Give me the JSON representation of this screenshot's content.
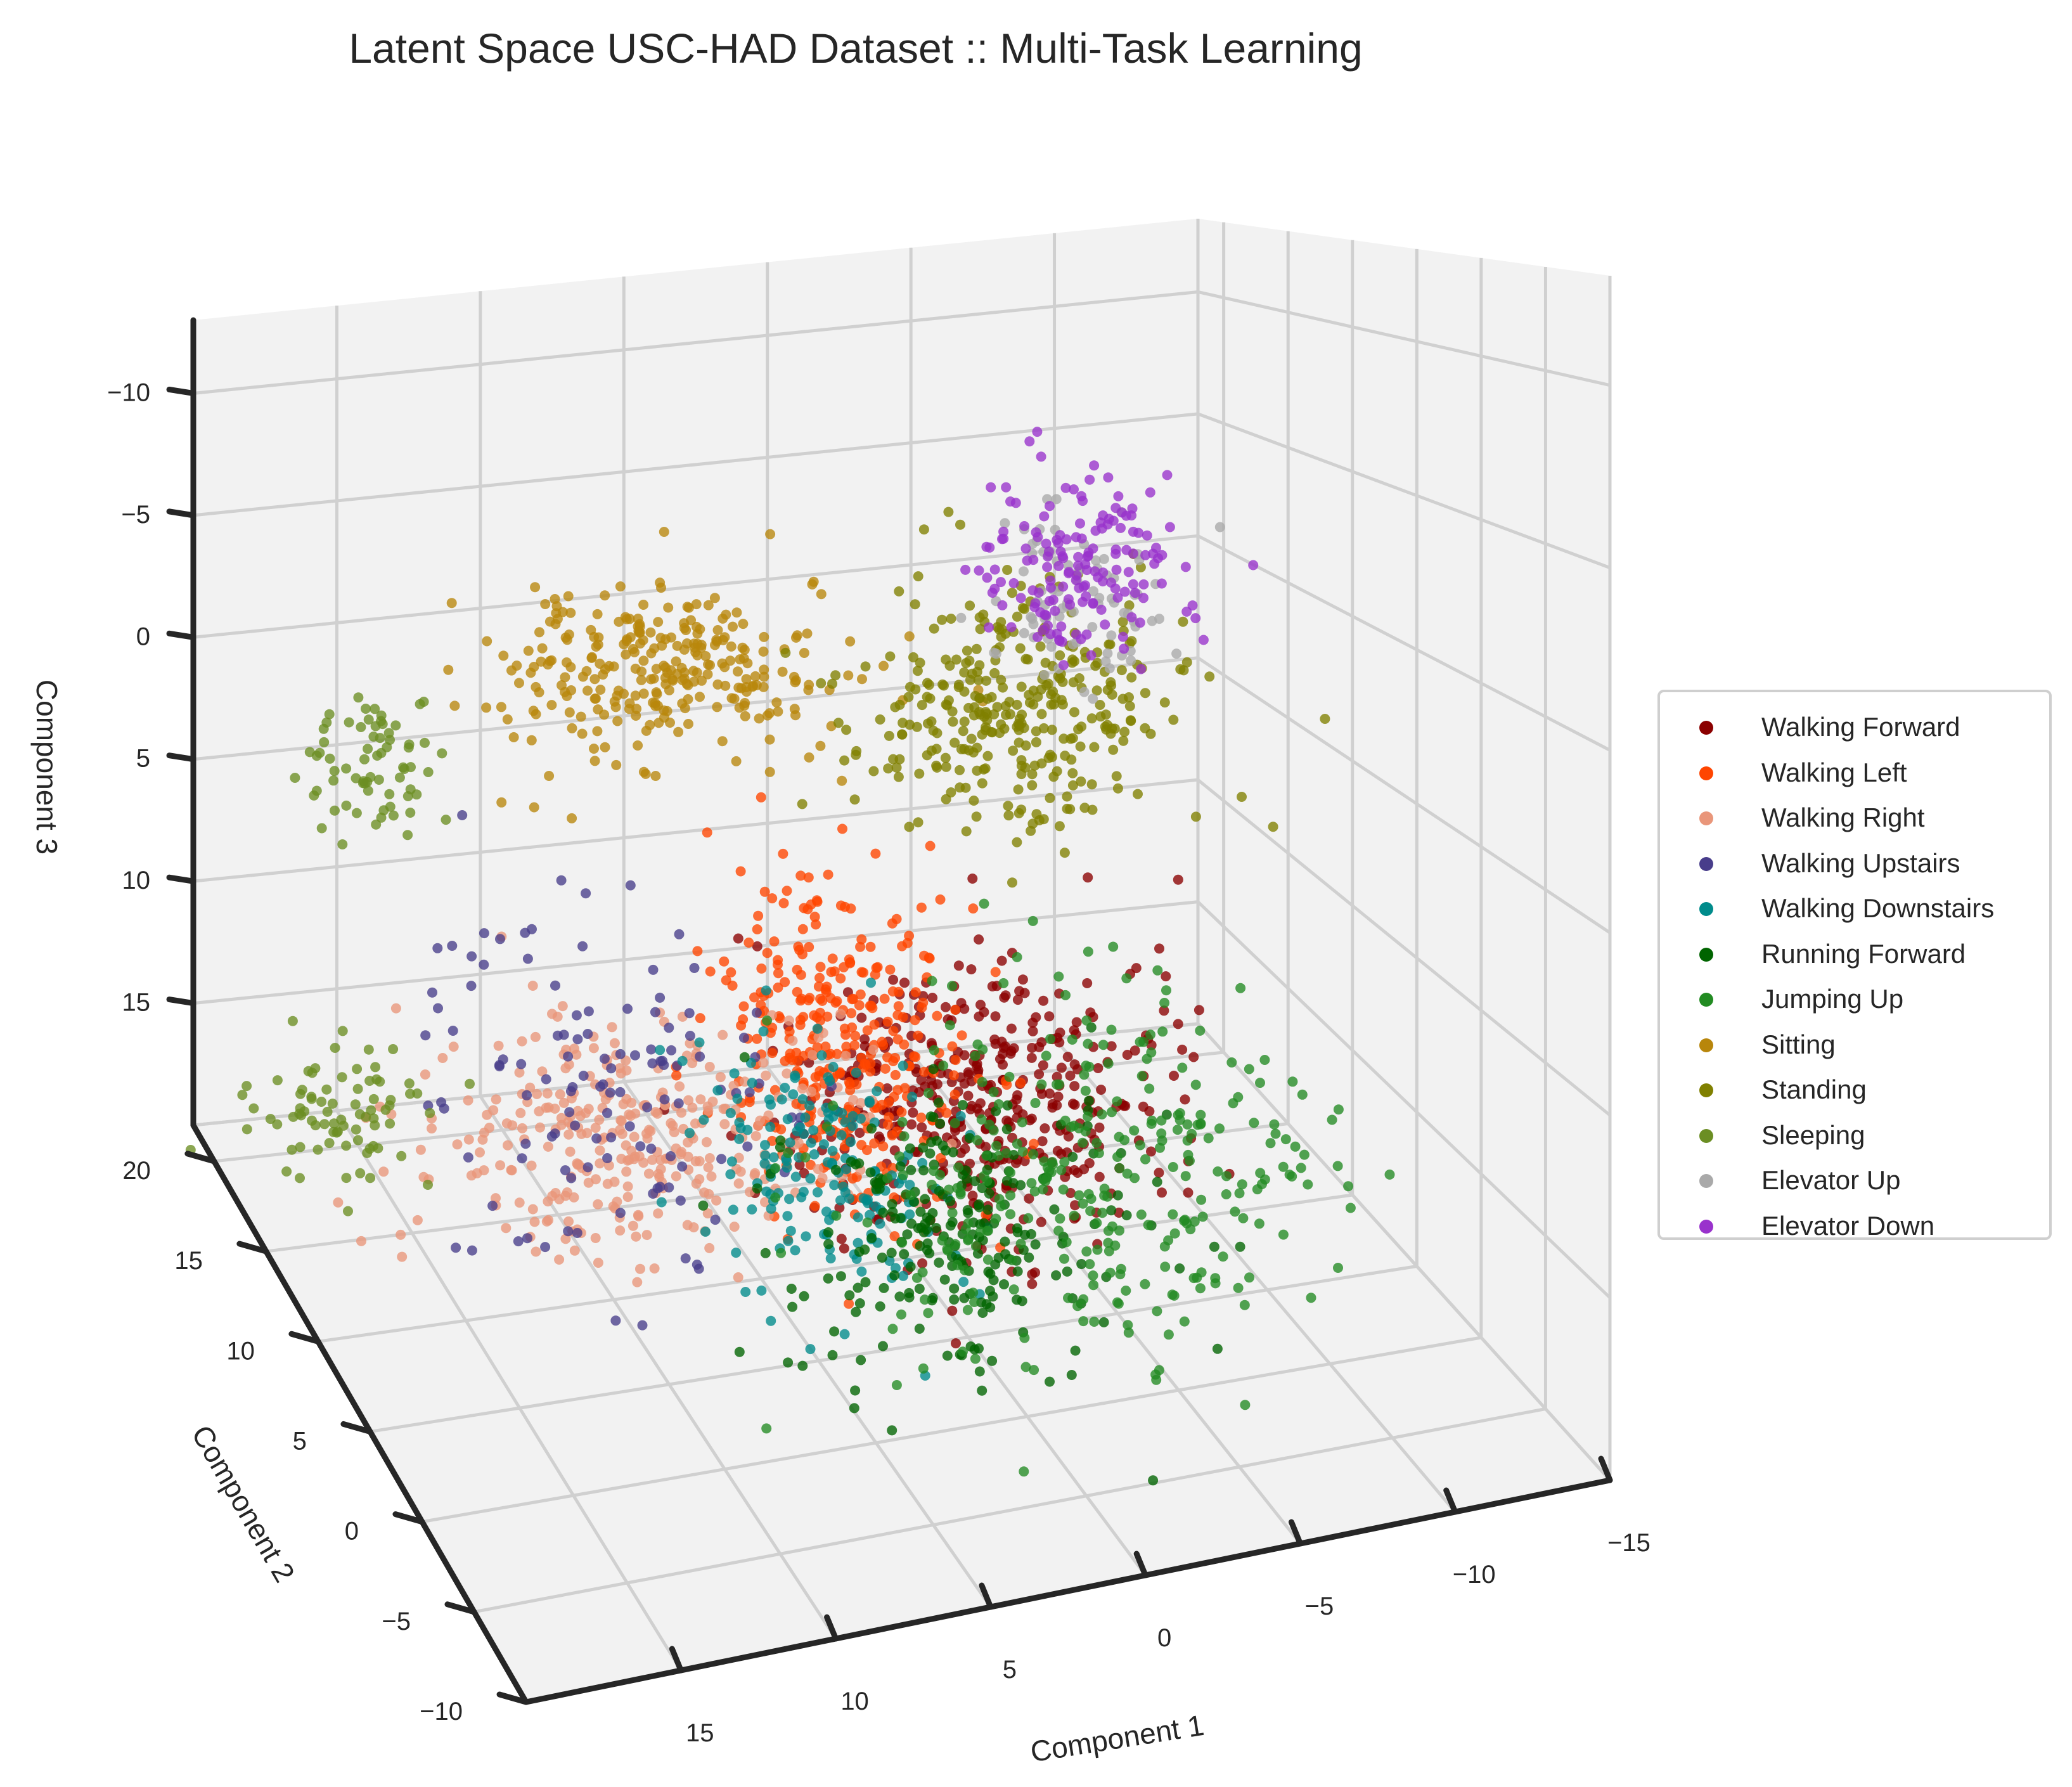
{
  "chart_data": {
    "type": "scatter",
    "projection": "3d",
    "title": "Latent Space USC-HAD Dataset :: Multi-Task Learning",
    "xlabel": "Component 1",
    "ylabel": "Component 2",
    "zlabel": "Component 3",
    "xlim": [
      -15,
      20
    ],
    "ylim": [
      -10,
      22
    ],
    "zlim": [
      -13,
      20
    ],
    "z_axis_inverted": true,
    "x_ticks": [
      -15,
      -10,
      -5,
      0,
      5,
      10,
      15
    ],
    "y_ticks": [
      -10,
      -5,
      0,
      5,
      10,
      15,
      20
    ],
    "z_ticks": [
      -10,
      -5,
      0,
      5,
      10,
      15
    ],
    "grid": true,
    "legend_position": "center-right",
    "series": [
      {
        "name": "Walking Forward",
        "color": "#8b0000",
        "clusters": [
          {
            "x": -1.5,
            "y": 8,
            "z": 14,
            "sx": 3,
            "sy": 3,
            "sz": 2,
            "n": 420
          }
        ]
      },
      {
        "name": "Walking Left",
        "color": "#ff4500",
        "clusters": [
          {
            "x": 1.5,
            "y": 12,
            "z": 13.5,
            "sx": 2,
            "sy": 3,
            "sz": 2.5,
            "n": 330
          }
        ]
      },
      {
        "name": "Walking Right",
        "color": "#e9967a",
        "clusters": [
          {
            "x": 9,
            "y": 11,
            "z": 15,
            "sx": 3.5,
            "sy": 3,
            "sz": 1.5,
            "n": 330
          }
        ]
      },
      {
        "name": "Walking Upstairs",
        "color": "#483d8b",
        "clusters": [
          {
            "x": 9,
            "y": 14,
            "z": 15,
            "sx": 3,
            "sy": 4,
            "sz": 2.5,
            "n": 120
          }
        ]
      },
      {
        "name": "Walking Downstairs",
        "color": "#008b8b",
        "clusters": [
          {
            "x": 3.5,
            "y": 9,
            "z": 15.5,
            "sx": 2,
            "sy": 3,
            "sz": 1.5,
            "n": 170
          }
        ]
      },
      {
        "name": "Running Forward",
        "color": "#006400",
        "clusters": [
          {
            "x": 4,
            "y": -4,
            "z": 12,
            "sx": 3,
            "sy": 2,
            "sz": 2,
            "n": 230
          }
        ]
      },
      {
        "name": "Jumping Up",
        "color": "#228b22",
        "clusters": [
          {
            "x": 0,
            "y": -5,
            "z": 11,
            "sx": 4,
            "sy": 3,
            "sz": 2.5,
            "n": 310
          }
        ]
      },
      {
        "name": "Sitting",
        "color": "#b8860b",
        "clusters": [
          {
            "x": 5,
            "y": 18,
            "z": 1.5,
            "sx": 3,
            "sy": 2,
            "sz": 1.5,
            "n": 290
          }
        ]
      },
      {
        "name": "Standing",
        "color": "#808000",
        "clusters": [
          {
            "x": -4,
            "y": 12,
            "z": 2,
            "sx": 2.5,
            "sy": 3,
            "sz": 2,
            "n": 330
          }
        ]
      },
      {
        "name": "Sleeping",
        "color": "#6b8e23",
        "clusters": [
          {
            "x": 15,
            "y": 18.5,
            "z": 4,
            "sx": 1,
            "sy": 1.5,
            "sz": 1.5,
            "n": 70
          },
          {
            "x": 17.5,
            "y": 15,
            "z": 15,
            "sx": 1.5,
            "sy": 1.5,
            "sz": 1,
            "n": 80
          }
        ]
      },
      {
        "name": "Elevator Up",
        "color": "#a9a9a9",
        "clusters": [
          {
            "x": -7,
            "y": 13,
            "z": -1,
            "sx": 1.5,
            "sy": 2,
            "sz": 1.5,
            "n": 80
          }
        ]
      },
      {
        "name": "Elevator Down",
        "color": "#9932cc",
        "clusters": [
          {
            "x": -7,
            "y": 13,
            "z": -2,
            "sx": 1.5,
            "sy": 2,
            "sz": 1.5,
            "n": 160
          }
        ]
      }
    ]
  }
}
